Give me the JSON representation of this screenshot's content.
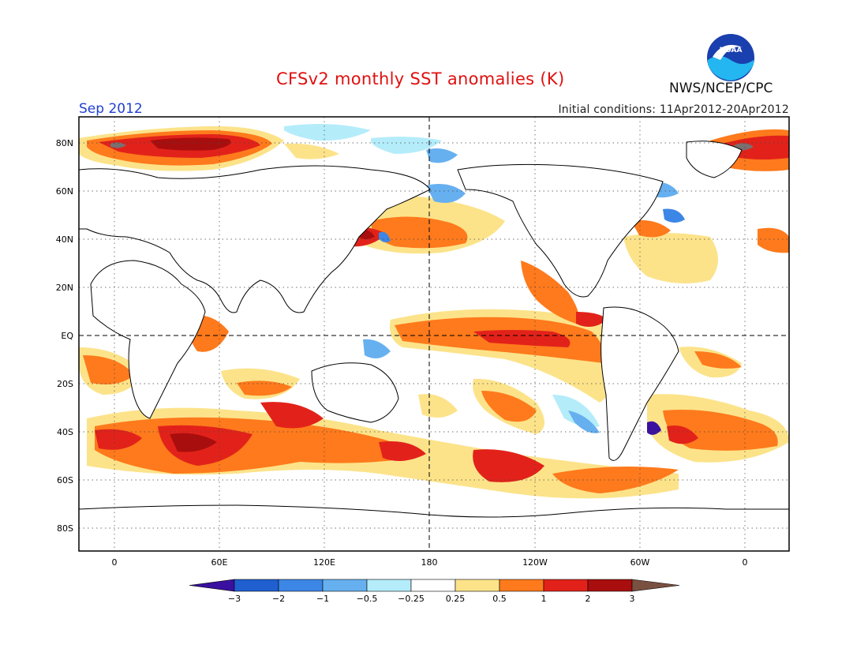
{
  "header": {
    "title": "CFSv2 monthly SST anomalies (K)",
    "valid_month": "Sep 2012",
    "initial_conditions": "Initial conditions: 11Apr2012-20Apr2012",
    "agency": "NWS/NCEP/CPC",
    "logo_text": "NOAA"
  },
  "map": {
    "lat_labels": [
      "80N",
      "60N",
      "40N",
      "20N",
      "EQ",
      "20S",
      "40S",
      "60S",
      "80S"
    ],
    "lon_labels": [
      "0",
      "60E",
      "120E",
      "180",
      "120W",
      "60W",
      "0"
    ],
    "background": "#ffffff",
    "land_color": "#ffffff",
    "coast_color": "#000000"
  },
  "legend": {
    "labels": [
      "-3",
      "-2",
      "-1",
      "-0.5",
      "-0.25",
      "0.25",
      "0.5",
      "1",
      "2",
      "3"
    ],
    "colors": [
      "#3a10a0",
      "#1f5fd0",
      "#3c86e6",
      "#66b0f0",
      "#b4ecfa",
      "#ffffff",
      "#fce38a",
      "#fe7a1c",
      "#e2221a",
      "#a90e0e",
      "#7a5040"
    ]
  }
}
